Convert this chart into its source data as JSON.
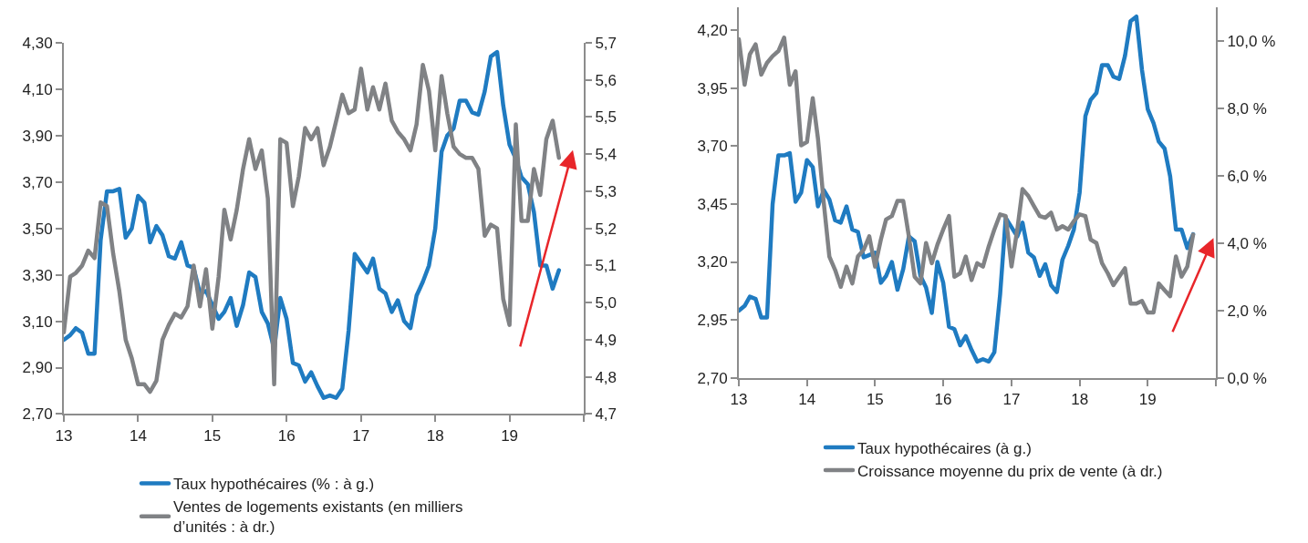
{
  "chart_data": [
    {
      "type": "line",
      "x": [
        "2013-01",
        "2013-02",
        "2013-03",
        "2013-04",
        "2013-05",
        "2013-06",
        "2013-07",
        "2013-08",
        "2013-09",
        "2013-10",
        "2013-11",
        "2013-12",
        "2014-01",
        "2014-02",
        "2014-03",
        "2014-04",
        "2014-05",
        "2014-06",
        "2014-07",
        "2014-08",
        "2014-09",
        "2014-10",
        "2014-11",
        "2014-12",
        "2015-01",
        "2015-02",
        "2015-03",
        "2015-04",
        "2015-05",
        "2015-06",
        "2015-07",
        "2015-08",
        "2015-09",
        "2015-10",
        "2015-11",
        "2015-12",
        "2016-01",
        "2016-02",
        "2016-03",
        "2016-04",
        "2016-05",
        "2016-06",
        "2016-07",
        "2016-08",
        "2016-09",
        "2016-10",
        "2016-11",
        "2016-12",
        "2017-01",
        "2017-02",
        "2017-03",
        "2017-04",
        "2017-05",
        "2017-06",
        "2017-07",
        "2017-08",
        "2017-09",
        "2017-10",
        "2017-11",
        "2017-12",
        "2018-01",
        "2018-02",
        "2018-03",
        "2018-04",
        "2018-05",
        "2018-06",
        "2018-07",
        "2018-08",
        "2018-09",
        "2018-10",
        "2018-11",
        "2018-12",
        "2019-01",
        "2019-02",
        "2019-03",
        "2019-04",
        "2019-05",
        "2019-06",
        "2019-07",
        "2019-08",
        "2019-09"
      ],
      "series": [
        {
          "name": "Taux hypothécaires (% : à g.)",
          "color": "#1f7bc1",
          "axis": "y",
          "values": [
            3.02,
            3.04,
            3.07,
            3.05,
            2.96,
            2.96,
            3.45,
            3.66,
            3.66,
            3.67,
            3.46,
            3.5,
            3.64,
            3.61,
            3.44,
            3.51,
            3.47,
            3.38,
            3.37,
            3.44,
            3.34,
            3.33,
            3.22,
            3.23,
            3.17,
            3.11,
            3.14,
            3.2,
            3.08,
            3.17,
            3.31,
            3.29,
            3.14,
            3.09,
            2.98,
            3.2,
            3.11,
            2.92,
            2.91,
            2.84,
            2.88,
            2.82,
            2.77,
            2.78,
            2.77,
            2.81,
            3.06,
            3.39,
            3.35,
            3.31,
            3.37,
            3.24,
            3.22,
            3.14,
            3.19,
            3.1,
            3.07,
            3.21,
            3.27,
            3.34,
            3.5,
            3.83,
            3.9,
            3.93,
            4.05,
            4.05,
            4.0,
            3.99,
            4.09,
            4.24,
            4.26,
            4.03,
            3.86,
            3.8,
            3.72,
            3.69,
            3.57,
            3.34,
            3.34,
            3.24,
            3.32
          ]
        },
        {
          "name": "Ventes de logements existants (en milliers d’unités : à dr.)",
          "color": "#808285",
          "axis": "y2",
          "values": [
            4.92,
            5.07,
            5.08,
            5.1,
            5.14,
            5.12,
            5.27,
            5.26,
            5.13,
            5.03,
            4.9,
            4.85,
            4.78,
            4.78,
            4.76,
            4.79,
            4.9,
            4.94,
            4.97,
            4.96,
            4.99,
            5.1,
            4.99,
            5.09,
            4.93,
            5.07,
            5.25,
            5.17,
            5.25,
            5.36,
            5.44,
            5.36,
            5.41,
            5.28,
            4.78,
            5.44,
            5.43,
            5.26,
            5.34,
            5.47,
            5.44,
            5.47,
            5.37,
            5.42,
            5.49,
            5.56,
            5.51,
            5.52,
            5.63,
            5.52,
            5.58,
            5.52,
            5.59,
            5.49,
            5.46,
            5.44,
            5.41,
            5.48,
            5.64,
            5.57,
            5.41,
            5.61,
            5.51,
            5.42,
            5.4,
            5.39,
            5.39,
            5.36,
            5.18,
            5.21,
            5.2,
            5.01,
            4.94,
            5.48,
            5.22,
            5.22,
            5.36,
            5.29,
            5.44,
            5.49,
            5.39
          ]
        }
      ],
      "xlim": [
        "2013-01",
        "2020-01"
      ],
      "xticks": [
        {
          "value": "2013-01",
          "label": "13"
        },
        {
          "value": "2014-01",
          "label": "14"
        },
        {
          "value": "2015-01",
          "label": "15"
        },
        {
          "value": "2016-01",
          "label": "16"
        },
        {
          "value": "2017-01",
          "label": "17"
        },
        {
          "value": "2018-01",
          "label": "18"
        },
        {
          "value": "2019-01",
          "label": "19"
        },
        {
          "value": "2020-01",
          "label": null
        }
      ],
      "ylim": [
        2.7,
        4.3
      ],
      "yticks": [
        {
          "value": 2.7,
          "label": "2,70"
        },
        {
          "value": 2.9,
          "label": "2,90"
        },
        {
          "value": 3.1,
          "label": "3,10"
        },
        {
          "value": 3.3,
          "label": "3,30"
        },
        {
          "value": 3.5,
          "label": "3,50"
        },
        {
          "value": 3.7,
          "label": "3,70"
        },
        {
          "value": 3.9,
          "label": "3,90"
        },
        {
          "value": 4.1,
          "label": "4,10"
        },
        {
          "value": 4.3,
          "label": "4,30"
        }
      ],
      "y2lim": [
        4.7,
        5.7
      ],
      "y2ticks": [
        {
          "value": 4.7,
          "label": "4,7"
        },
        {
          "value": 4.8,
          "label": "4,8"
        },
        {
          "value": 4.9,
          "label": "4,9"
        },
        {
          "value": 5.0,
          "label": "5,0"
        },
        {
          "value": 5.1,
          "label": "5,1"
        },
        {
          "value": 5.2,
          "label": "5,2"
        },
        {
          "value": 5.3,
          "label": "5,3"
        },
        {
          "value": 5.4,
          "label": "5,4"
        },
        {
          "value": 5.5,
          "label": "5,5"
        },
        {
          "value": 5.6,
          "label": "5,6"
        },
        {
          "value": 5.7,
          "label": "5,7"
        }
      ],
      "legend": "bottom"
    },
    {
      "type": "line",
      "x": [
        "2013-01",
        "2013-02",
        "2013-03",
        "2013-04",
        "2013-05",
        "2013-06",
        "2013-07",
        "2013-08",
        "2013-09",
        "2013-10",
        "2013-11",
        "2013-12",
        "2014-01",
        "2014-02",
        "2014-03",
        "2014-04",
        "2014-05",
        "2014-06",
        "2014-07",
        "2014-08",
        "2014-09",
        "2014-10",
        "2014-11",
        "2014-12",
        "2015-01",
        "2015-02",
        "2015-03",
        "2015-04",
        "2015-05",
        "2015-06",
        "2015-07",
        "2015-08",
        "2015-09",
        "2015-10",
        "2015-11",
        "2015-12",
        "2016-01",
        "2016-02",
        "2016-03",
        "2016-04",
        "2016-05",
        "2016-06",
        "2016-07",
        "2016-08",
        "2016-09",
        "2016-10",
        "2016-11",
        "2016-12",
        "2017-01",
        "2017-02",
        "2017-03",
        "2017-04",
        "2017-05",
        "2017-06",
        "2017-07",
        "2017-08",
        "2017-09",
        "2017-10",
        "2017-11",
        "2017-12",
        "2018-01",
        "2018-02",
        "2018-03",
        "2018-04",
        "2018-05",
        "2018-06",
        "2018-07",
        "2018-08",
        "2018-09",
        "2018-10",
        "2018-11",
        "2018-12",
        "2019-01",
        "2019-02",
        "2019-03",
        "2019-04",
        "2019-05",
        "2019-06",
        "2019-07",
        "2019-08",
        "2019-09"
      ],
      "series": [
        {
          "name": "Taux hypothécaires (à g.)",
          "color": "#1f7bc1",
          "axis": "y",
          "values": [
            2.99,
            3.01,
            3.05,
            3.04,
            2.96,
            2.96,
            3.45,
            3.66,
            3.66,
            3.67,
            3.46,
            3.5,
            3.64,
            3.61,
            3.44,
            3.51,
            3.47,
            3.38,
            3.37,
            3.44,
            3.34,
            3.33,
            3.22,
            3.23,
            3.24,
            3.11,
            3.14,
            3.2,
            3.08,
            3.17,
            3.31,
            3.29,
            3.14,
            3.09,
            2.98,
            3.2,
            3.11,
            2.92,
            2.91,
            2.84,
            2.88,
            2.82,
            2.77,
            2.78,
            2.77,
            2.81,
            3.06,
            3.39,
            3.35,
            3.31,
            3.37,
            3.24,
            3.22,
            3.14,
            3.19,
            3.1,
            3.07,
            3.21,
            3.27,
            3.34,
            3.5,
            3.83,
            3.9,
            3.93,
            4.05,
            4.05,
            4.0,
            3.99,
            4.09,
            4.24,
            4.26,
            4.03,
            3.86,
            3.8,
            3.72,
            3.69,
            3.57,
            3.34,
            3.34,
            3.26,
            3.32
          ]
        },
        {
          "name": "Croissance moyenne du prix de vente (à dr.)",
          "color": "#808285",
          "axis": "y2",
          "values": [
            10.05,
            8.7,
            9.6,
            9.9,
            9.0,
            9.35,
            9.55,
            9.7,
            10.1,
            8.7,
            9.1,
            6.9,
            7.0,
            8.3,
            7.1,
            5.2,
            3.6,
            3.2,
            2.7,
            3.3,
            2.8,
            3.6,
            3.8,
            4.2,
            3.3,
            4.1,
            4.7,
            4.8,
            5.25,
            5.25,
            4.2,
            3.0,
            2.8,
            4.0,
            3.4,
            3.95,
            4.4,
            4.8,
            3.0,
            3.1,
            3.6,
            2.9,
            3.4,
            3.3,
            3.9,
            4.4,
            4.85,
            4.8,
            3.3,
            4.4,
            5.6,
            5.4,
            5.1,
            4.8,
            4.75,
            4.9,
            4.4,
            4.5,
            4.4,
            4.65,
            4.85,
            4.8,
            4.1,
            4.0,
            3.4,
            3.1,
            2.75,
            3.0,
            3.25,
            2.2,
            2.2,
            2.28,
            1.94,
            1.94,
            2.8,
            2.6,
            2.42,
            3.6,
            3.0,
            3.3,
            4.25
          ]
        }
      ],
      "xlim": [
        "2013-01",
        "2020-01"
      ],
      "xticks": [
        {
          "value": "2013-01",
          "label": "13"
        },
        {
          "value": "2014-01",
          "label": "14"
        },
        {
          "value": "2015-01",
          "label": "15"
        },
        {
          "value": "2016-01",
          "label": "16"
        },
        {
          "value": "2017-01",
          "label": "17"
        },
        {
          "value": "2018-01",
          "label": "18"
        },
        {
          "value": "2019-01",
          "label": "19"
        },
        {
          "value": "2020-01",
          "label": null
        }
      ],
      "ylim": [
        2.7,
        4.3
      ],
      "yticks": [
        {
          "value": 2.7,
          "label": "2,70"
        },
        {
          "value": 2.95,
          "label": "2,95"
        },
        {
          "value": 3.2,
          "label": "3,20"
        },
        {
          "value": 3.45,
          "label": "3,45"
        },
        {
          "value": 3.7,
          "label": "3,70"
        },
        {
          "value": 3.95,
          "label": "3,95"
        },
        {
          "value": 4.2,
          "label": "4,20"
        }
      ],
      "y2lim": [
        0,
        11
      ],
      "y2ticks": [
        {
          "value": 0,
          "label": "0,0 %"
        },
        {
          "value": 2,
          "label": "2,0 %"
        },
        {
          "value": 4,
          "label": "4,0 %"
        },
        {
          "value": 6,
          "label": "6,0 %"
        },
        {
          "value": 8,
          "label": "8,0 %"
        },
        {
          "value": 10,
          "label": "10,0 %"
        }
      ],
      "legend": "bottom"
    }
  ]
}
